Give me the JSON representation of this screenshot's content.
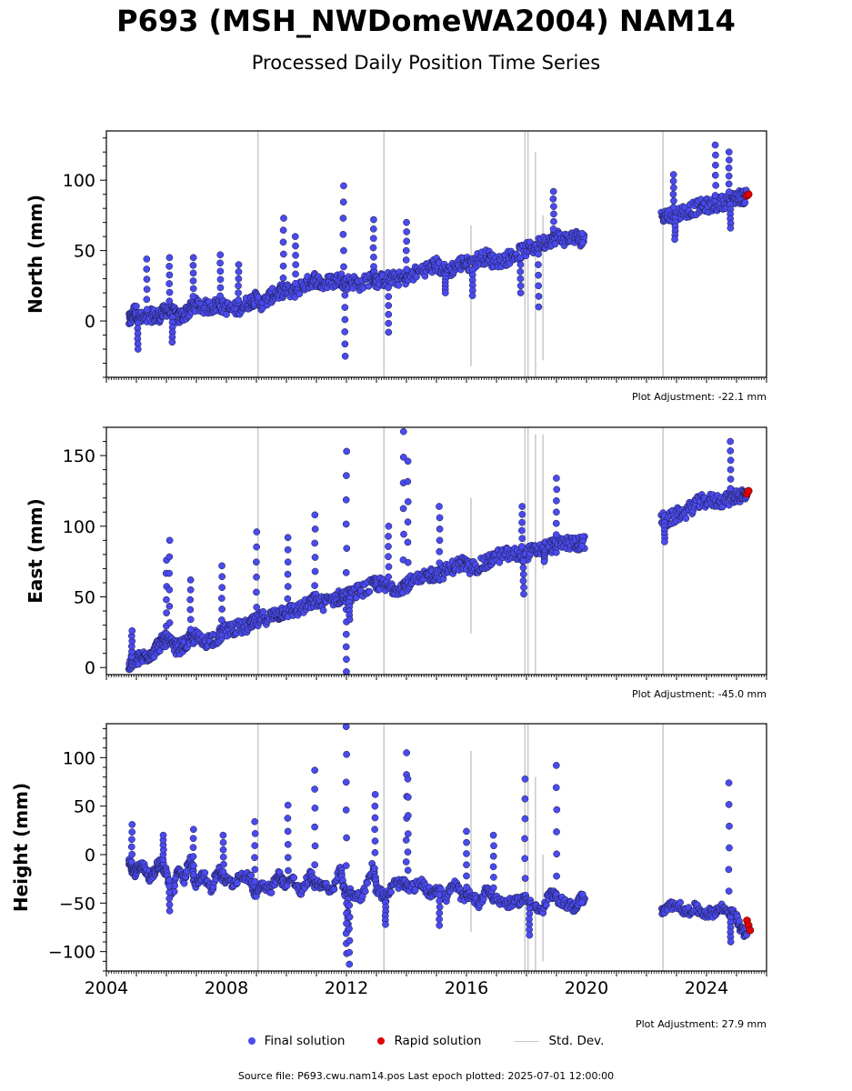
{
  "title": "P693 (MSH_NWDomeWA2004) NAM14",
  "subtitle": "Processed Daily Position Time Series",
  "legend": {
    "final": "Final solution",
    "rapid": "Rapid solution",
    "std": "Std. Dev."
  },
  "footer": "Source file: P693.cwu.nam14.pos  Last epoch plotted: 2025-07-01 12:00:00",
  "colors": {
    "final": "#4a4aef",
    "rapid": "#e00000",
    "std": "#c8c8c8",
    "edge": "#1a1a3a"
  },
  "chart_data": [
    {
      "type": "scatter",
      "ylabel": "North (mm)",
      "xlim": [
        2004.0,
        2026.0
      ],
      "ylim": [
        -40,
        135
      ],
      "yticks": [
        0,
        50,
        100
      ],
      "xticks": [
        2004,
        2008,
        2012,
        2016,
        2020,
        2024
      ],
      "adjustment": "Plot Adjustment: -22.1 mm",
      "series": [
        {
          "name": "Final solution",
          "x": [
            2004.75,
            2004.85,
            2004.95,
            2005.1,
            2005.3,
            2005.5,
            2005.7,
            2005.85,
            2006.0,
            2006.2,
            2006.4,
            2006.6,
            2006.8,
            2006.95,
            2007.2,
            2007.5,
            2007.75,
            2007.9,
            2008.2,
            2008.5,
            2008.8,
            2008.95,
            2009.2,
            2009.5,
            2009.75,
            2009.9,
            2010.2,
            2010.5,
            2010.8,
            2010.95,
            2011.2,
            2011.5,
            2011.8,
            2011.95,
            2012.2,
            2012.5,
            2012.9,
            2013.0,
            2013.3,
            2013.6,
            2013.9,
            2014.1,
            2014.5,
            2014.8,
            2015.0,
            2015.3,
            2015.6,
            2015.9,
            2016.1,
            2016.4,
            2016.7,
            2016.9,
            2017.3,
            2017.6,
            2017.9,
            2018.2,
            2018.5,
            2018.8,
            2019.0,
            2019.3,
            2019.6,
            2019.8,
            2022.5,
            2022.7,
            2023.0,
            2023.3,
            2023.6,
            2023.9,
            2024.2,
            2024.5,
            2024.8,
            2025.0,
            2025.2
          ],
          "y": [
            0,
            3,
            8,
            2,
            1,
            4,
            3,
            5,
            8,
            6,
            2,
            5,
            8,
            12,
            10,
            10,
            12,
            10,
            8,
            10,
            14,
            16,
            12,
            18,
            20,
            22,
            20,
            25,
            28,
            30,
            26,
            28,
            30,
            27,
            28,
            26,
            32,
            28,
            30,
            30,
            30,
            32,
            36,
            38,
            40,
            35,
            38,
            42,
            40,
            44,
            46,
            42,
            44,
            47,
            50,
            52,
            55,
            58,
            60,
            58,
            60,
            58,
            76,
            75,
            76,
            78,
            80,
            82,
            82,
            84,
            86,
            88,
            88
          ],
          "spikes": [
            [
              2005.05,
              -20
            ],
            [
              2005.35,
              44
            ],
            [
              2006.1,
              45
            ],
            [
              2006.2,
              -15
            ],
            [
              2006.9,
              45
            ],
            [
              2007.8,
              47
            ],
            [
              2008.4,
              40
            ],
            [
              2009.9,
              73
            ],
            [
              2010.3,
              60
            ],
            [
              2011.9,
              96
            ],
            [
              2011.95,
              -25
            ],
            [
              2012.9,
              72
            ],
            [
              2013.4,
              -8
            ],
            [
              2014.0,
              70
            ],
            [
              2015.3,
              20
            ],
            [
              2016.2,
              18
            ],
            [
              2017.8,
              20
            ],
            [
              2018.4,
              10
            ],
            [
              2018.9,
              92
            ],
            [
              2022.9,
              104
            ],
            [
              2022.95,
              58
            ],
            [
              2024.3,
              125
            ],
            [
              2024.75,
              120
            ],
            [
              2024.8,
              66
            ]
          ]
        },
        {
          "name": "Rapid solution",
          "x": [
            2025.35,
            2025.4
          ],
          "y": [
            89,
            90
          ]
        }
      ],
      "stddev_lines": [
        [
          2009.05,
          -40,
          135
        ],
        [
          2013.25,
          -40,
          135
        ],
        [
          2016.15,
          -32,
          68
        ],
        [
          2017.95,
          -40,
          135
        ],
        [
          2018.05,
          -40,
          135
        ],
        [
          2018.3,
          -40,
          120
        ],
        [
          2018.55,
          -28,
          75
        ],
        [
          2022.55,
          -40,
          135
        ]
      ]
    },
    {
      "type": "scatter",
      "ylabel": "East (mm)",
      "xlim": [
        2004.0,
        2026.0
      ],
      "ylim": [
        -5,
        170
      ],
      "yticks": [
        0,
        50,
        100,
        150
      ],
      "xticks": [
        2004,
        2008,
        2012,
        2016,
        2020,
        2024
      ],
      "adjustment": "Plot Adjustment: -45.0 mm",
      "series": [
        {
          "name": "Final solution",
          "x": [
            2004.75,
            2004.85,
            2004.95,
            2005.1,
            2005.3,
            2005.5,
            2005.7,
            2005.85,
            2006.0,
            2006.2,
            2006.4,
            2006.6,
            2006.8,
            2006.95,
            2007.2,
            2007.5,
            2007.75,
            2007.9,
            2008.2,
            2008.5,
            2008.8,
            2008.95,
            2009.2,
            2009.5,
            2009.75,
            2009.9,
            2010.2,
            2010.5,
            2010.8,
            2010.95,
            2011.2,
            2011.5,
            2011.8,
            2011.95,
            2012.2,
            2012.5,
            2012.9,
            2013.0,
            2013.3,
            2013.6,
            2013.9,
            2014.1,
            2014.5,
            2014.8,
            2015.0,
            2015.3,
            2015.6,
            2015.9,
            2016.1,
            2016.4,
            2016.7,
            2016.9,
            2017.3,
            2017.6,
            2017.9,
            2018.2,
            2018.5,
            2018.8,
            2019.0,
            2019.3,
            2019.6,
            2019.8,
            2022.5,
            2022.7,
            2023.0,
            2023.3,
            2023.6,
            2023.9,
            2024.2,
            2024.5,
            2024.8,
            2025.0,
            2025.2
          ],
          "y": [
            0,
            4,
            6,
            6,
            8,
            10,
            15,
            18,
            20,
            15,
            14,
            16,
            20,
            22,
            18,
            20,
            22,
            26,
            28,
            28,
            30,
            32,
            35,
            36,
            38,
            40,
            40,
            42,
            45,
            48,
            45,
            48,
            50,
            50,
            52,
            55,
            58,
            60,
            57,
            56,
            58,
            60,
            62,
            66,
            66,
            68,
            72,
            74,
            70,
            72,
            74,
            78,
            80,
            80,
            80,
            82,
            84,
            86,
            86,
            88,
            88,
            88,
            105,
            104,
            108,
            110,
            115,
            118,
            118,
            118,
            120,
            122,
            122
          ],
          "spikes": [
            [
              2004.85,
              26
            ],
            [
              2006.0,
              76
            ],
            [
              2006.1,
              90
            ],
            [
              2006.8,
              62
            ],
            [
              2007.85,
              72
            ],
            [
              2009.0,
              96
            ],
            [
              2010.05,
              92
            ],
            [
              2010.95,
              108
            ],
            [
              2012.0,
              153
            ],
            [
              2012.0,
              -3
            ],
            [
              2012.1,
              34
            ],
            [
              2013.4,
              100
            ],
            [
              2013.9,
              167
            ],
            [
              2014.05,
              146
            ],
            [
              2015.1,
              114
            ],
            [
              2017.85,
              114
            ],
            [
              2017.9,
              52
            ],
            [
              2018.6,
              75
            ],
            [
              2019.0,
              134
            ],
            [
              2022.6,
              89
            ],
            [
              2024.8,
              160
            ]
          ]
        },
        {
          "name": "Rapid solution",
          "x": [
            2025.35,
            2025.4
          ],
          "y": [
            123,
            125
          ]
        }
      ],
      "stddev_lines": [
        [
          2009.05,
          -5,
          170
        ],
        [
          2013.25,
          -5,
          170
        ],
        [
          2016.15,
          24,
          120
        ],
        [
          2017.95,
          -5,
          170
        ],
        [
          2018.05,
          -5,
          170
        ],
        [
          2018.3,
          -5,
          165
        ],
        [
          2018.55,
          70,
          165
        ],
        [
          2022.55,
          -5,
          170
        ]
      ]
    },
    {
      "type": "scatter",
      "ylabel": "Height (mm)",
      "xlim": [
        2004.0,
        2026.0
      ],
      "ylim": [
        -120,
        135
      ],
      "yticks": [
        -100,
        -50,
        0,
        50,
        100
      ],
      "ytick_labels": [
        "−100",
        "−50",
        "0",
        "50",
        "100"
      ],
      "xticks": [
        2004,
        2008,
        2012,
        2016,
        2020,
        2024
      ],
      "xtick_labels": [
        "2004",
        "2008",
        "2012",
        "2016",
        "2020",
        "2024"
      ],
      "adjustment": "Plot Adjustment: 27.9 mm",
      "series": [
        {
          "name": "Final solution",
          "x": [
            2004.75,
            2004.85,
            2004.95,
            2005.1,
            2005.3,
            2005.5,
            2005.7,
            2005.85,
            2006.0,
            2006.2,
            2006.4,
            2006.6,
            2006.8,
            2006.95,
            2007.2,
            2007.5,
            2007.75,
            2007.9,
            2008.2,
            2008.5,
            2008.8,
            2008.95,
            2009.2,
            2009.5,
            2009.75,
            2009.9,
            2010.2,
            2010.5,
            2010.8,
            2010.95,
            2011.2,
            2011.5,
            2011.8,
            2011.95,
            2012.2,
            2012.5,
            2012.9,
            2013.0,
            2013.3,
            2013.6,
            2013.9,
            2014.1,
            2014.5,
            2014.8,
            2015.0,
            2015.3,
            2015.6,
            2015.9,
            2016.1,
            2016.4,
            2016.7,
            2016.9,
            2017.3,
            2017.6,
            2017.9,
            2018.2,
            2018.5,
            2018.8,
            2019.0,
            2019.3,
            2019.6,
            2019.8,
            2022.5,
            2022.7,
            2023.0,
            2023.3,
            2023.6,
            2023.9,
            2024.2,
            2024.5,
            2024.8,
            2025.0,
            2025.2
          ],
          "y": [
            -5,
            -15,
            -20,
            -10,
            -15,
            -25,
            -10,
            -10,
            -20,
            -40,
            -15,
            -25,
            -5,
            -30,
            -20,
            -35,
            -15,
            -25,
            -30,
            -20,
            -25,
            -40,
            -30,
            -35,
            -20,
            -30,
            -25,
            -40,
            -20,
            -30,
            -30,
            -40,
            -15,
            -40,
            -40,
            -45,
            -10,
            -35,
            -45,
            -30,
            -30,
            -35,
            -30,
            -40,
            -35,
            -45,
            -30,
            -45,
            -40,
            -50,
            -35,
            -45,
            -50,
            -50,
            -45,
            -50,
            -60,
            -40,
            -45,
            -50,
            -55,
            -45,
            -60,
            -55,
            -50,
            -60,
            -55,
            -60,
            -60,
            -55,
            -60,
            -65,
            -80
          ],
          "spikes": [
            [
              2004.85,
              31
            ],
            [
              2005.9,
              20
            ],
            [
              2006.1,
              -58
            ],
            [
              2006.9,
              26
            ],
            [
              2007.9,
              20
            ],
            [
              2008.95,
              34
            ],
            [
              2010.05,
              51
            ],
            [
              2010.95,
              87
            ],
            [
              2012.0,
              132
            ],
            [
              2012.05,
              -78
            ],
            [
              2012.0,
              -102
            ],
            [
              2012.1,
              -113
            ],
            [
              2012.95,
              62
            ],
            [
              2013.3,
              -72
            ],
            [
              2014.0,
              105
            ],
            [
              2014.05,
              78
            ],
            [
              2015.1,
              -73
            ],
            [
              2016.0,
              24
            ],
            [
              2016.9,
              20
            ],
            [
              2017.95,
              78
            ],
            [
              2018.1,
              -83
            ],
            [
              2019.0,
              92
            ],
            [
              2024.75,
              74
            ],
            [
              2024.8,
              -90
            ]
          ]
        },
        {
          "name": "Rapid solution",
          "x": [
            2025.35,
            2025.4,
            2025.45
          ],
          "y": [
            -68,
            -73,
            -78
          ]
        }
      ],
      "stddev_lines": [
        [
          2009.05,
          -120,
          135
        ],
        [
          2013.25,
          -120,
          135
        ],
        [
          2016.15,
          -80,
          107
        ],
        [
          2017.95,
          -120,
          135
        ],
        [
          2018.05,
          -120,
          135
        ],
        [
          2018.3,
          -120,
          80
        ],
        [
          2018.55,
          -110,
          0
        ],
        [
          2022.55,
          -120,
          135
        ]
      ]
    }
  ]
}
